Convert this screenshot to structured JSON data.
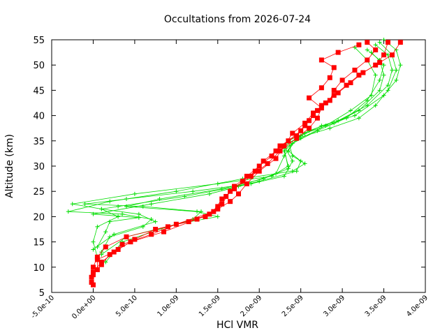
{
  "chart_data": {
    "type": "line",
    "title": "Occultations from 2026-07-24",
    "xlabel": "HCl VMR",
    "ylabel": "Altitude (km)",
    "xlim": [
      -5e-10,
      4e-09
    ],
    "ylim": [
      5,
      55
    ],
    "xticks": [
      -5e-10,
      0,
      5e-10,
      1e-09,
      1.5e-09,
      2e-09,
      2.5e-09,
      3e-09,
      3.5e-09,
      4e-09
    ],
    "xtick_labels": [
      "-5.0e-10",
      "0.0e+00",
      "5.0e-10",
      "1.0e-09",
      "1.5e-09",
      "2.0e-09",
      "2.5e-09",
      "3.0e-09",
      "3.5e-09",
      "4.0e-09"
    ],
    "yticks": [
      5,
      10,
      15,
      20,
      25,
      30,
      35,
      40,
      45,
      50,
      55
    ],
    "ytick_labels": [
      "5",
      "10",
      "15",
      "20",
      "25",
      "30",
      "35",
      "40",
      "45",
      "50",
      "55"
    ],
    "grid": false,
    "legend": "none",
    "colors": {
      "green_series": "#00dd00",
      "red_series": "#ff0000"
    },
    "green_series": [
      {
        "marker": "plus",
        "points": [
          [
            5e-11,
            12
          ],
          [
            0.0,
            15
          ],
          [
            5e-11,
            18
          ],
          [
            3e-10,
            20
          ],
          [
            1e-10,
            21.5
          ],
          [
            -2.5e-10,
            22.5
          ],
          [
            5e-10,
            24.5
          ],
          [
            1.5e-09,
            26.5
          ],
          [
            2.15e-09,
            28
          ],
          [
            2.35e-09,
            30
          ],
          [
            2.3e-09,
            33
          ],
          [
            2.5e-09,
            36
          ],
          [
            2.75e-09,
            38
          ],
          [
            3.15e-09,
            40
          ],
          [
            3.5e-09,
            44
          ],
          [
            3.65e-09,
            47
          ],
          [
            3.7e-09,
            50
          ],
          [
            3.65e-09,
            53
          ],
          [
            3.5e-09,
            55
          ]
        ]
      },
      {
        "marker": "plus",
        "points": [
          [
            1e-10,
            13
          ],
          [
            2e-10,
            16
          ],
          [
            6e-10,
            18
          ],
          [
            7e-10,
            19.5
          ],
          [
            3.5e-10,
            20.5
          ],
          [
            -3e-10,
            21
          ],
          [
            2e-10,
            23
          ],
          [
            1e-09,
            25
          ],
          [
            1.8e-09,
            27.5
          ],
          [
            2.4e-09,
            29
          ],
          [
            2.55e-09,
            30.5
          ],
          [
            2.4e-09,
            32
          ],
          [
            2.35e-09,
            35
          ],
          [
            2.6e-09,
            37
          ],
          [
            2.95e-09,
            39
          ],
          [
            3.3e-09,
            42
          ],
          [
            3.55e-09,
            46
          ],
          [
            3.6e-09,
            49
          ],
          [
            3.55e-09,
            52
          ],
          [
            3.4e-09,
            54
          ]
        ]
      },
      {
        "marker": "plus",
        "points": [
          [
            1.5e-10,
            11
          ],
          [
            3.5e-10,
            15
          ],
          [
            9e-10,
            18
          ],
          [
            1.2e-09,
            19.5
          ],
          [
            1.3e-09,
            21
          ],
          [
            6e-10,
            22
          ],
          [
            -1e-10,
            22.5
          ],
          [
            4e-10,
            23.5
          ],
          [
            1.2e-09,
            25
          ],
          [
            1.9e-09,
            26.5
          ],
          [
            2.3e-09,
            28
          ],
          [
            2.4e-09,
            31
          ],
          [
            2.3e-09,
            34
          ],
          [
            2.55e-09,
            36.5
          ],
          [
            2.9e-09,
            38.5
          ],
          [
            3.2e-09,
            41
          ],
          [
            3.45e-09,
            45
          ],
          [
            3.5e-09,
            48
          ],
          [
            3.45e-09,
            51
          ],
          [
            3.3e-09,
            53
          ]
        ]
      },
      {
        "marker": "plus",
        "points": [
          [
            0.0,
            13.5
          ],
          [
            2.5e-10,
            16.5
          ],
          [
            7.5e-10,
            19
          ],
          [
            5.5e-10,
            20.5
          ],
          [
            1e-10,
            21.5
          ],
          [
            3e-10,
            22
          ],
          [
            1.1e-09,
            24
          ],
          [
            1.75e-09,
            26
          ],
          [
            2.2e-09,
            28.5
          ],
          [
            2.3e-09,
            32
          ],
          [
            2.4e-09,
            34.5
          ],
          [
            2.7e-09,
            37
          ],
          [
            3.05e-09,
            39.5
          ],
          [
            3.3e-09,
            43
          ],
          [
            3.45e-09,
            47
          ],
          [
            3.5e-09,
            50
          ],
          [
            3.35e-09,
            52.5
          ]
        ]
      },
      {
        "marker": "plus",
        "points": [
          [
            1e-10,
            12.5
          ],
          [
            4e-10,
            16
          ],
          [
            1e-09,
            18.5
          ],
          [
            1.5e-09,
            20
          ],
          [
            1.25e-09,
            21
          ],
          [
            4e-10,
            22
          ],
          [
            8e-10,
            23.5
          ],
          [
            1.55e-09,
            25.5
          ],
          [
            2.05e-09,
            27.5
          ],
          [
            2.35e-09,
            29.5
          ],
          [
            2.3e-09,
            33.5
          ],
          [
            2.5e-09,
            35.5
          ],
          [
            2.8e-09,
            38
          ],
          [
            3.1e-09,
            41
          ],
          [
            3.35e-09,
            44
          ],
          [
            3.4e-09,
            48
          ],
          [
            3.3e-09,
            51
          ],
          [
            3.15e-09,
            53.5
          ]
        ]
      },
      {
        "marker": "plus",
        "points": [
          [
            5e-11,
            14
          ],
          [
            1.5e-10,
            17
          ],
          [
            2e-10,
            19
          ],
          [
            5.5e-10,
            19.8
          ],
          [
            0.0,
            20.5
          ],
          [
            7e-10,
            22.5
          ],
          [
            1.4e-09,
            24.5
          ],
          [
            2e-09,
            27
          ],
          [
            2.45e-09,
            29
          ],
          [
            2.5e-09,
            31
          ],
          [
            2.35e-09,
            33
          ],
          [
            2.45e-09,
            35.5
          ],
          [
            2.85e-09,
            37.5
          ],
          [
            3.2e-09,
            39.5
          ],
          [
            3.4e-09,
            42
          ],
          [
            3.55e-09,
            45
          ],
          [
            3.65e-09,
            49
          ],
          [
            3.6e-09,
            52
          ],
          [
            3.45e-09,
            54.5
          ]
        ]
      }
    ],
    "red_series": [
      {
        "marker": "square",
        "points": [
          [
            0.0,
            6.5
          ],
          [
            -2e-11,
            8
          ],
          [
            0.0,
            10
          ],
          [
            5e-11,
            12
          ],
          [
            1.5e-10,
            14
          ],
          [
            4e-10,
            16
          ],
          [
            9e-10,
            18
          ],
          [
            1.35e-09,
            20
          ],
          [
            1.5e-09,
            22
          ],
          [
            1.6e-09,
            24
          ],
          [
            1.7e-09,
            26
          ],
          [
            1.85e-09,
            28
          ],
          [
            2e-09,
            30
          ],
          [
            2.15e-09,
            32
          ],
          [
            2.25e-09,
            34
          ],
          [
            2.45e-09,
            36
          ],
          [
            2.55e-09,
            38
          ],
          [
            2.65e-09,
            40
          ],
          [
            2.75e-09,
            42
          ],
          [
            2.9e-09,
            44
          ],
          [
            3.05e-09,
            46
          ],
          [
            3.2e-09,
            48
          ],
          [
            3.4e-09,
            50
          ],
          [
            3.5e-09,
            52
          ],
          [
            3.55e-09,
            54.5
          ]
        ]
      },
      {
        "marker": "square",
        "points": [
          [
            -2e-11,
            7
          ],
          [
            0.0,
            9
          ],
          [
            1e-10,
            11
          ],
          [
            3e-10,
            13.5
          ],
          [
            5e-10,
            15.5
          ],
          [
            7.5e-10,
            17.5
          ],
          [
            1.15e-09,
            19
          ],
          [
            1.4e-09,
            20.5
          ],
          [
            1.55e-09,
            22.5
          ],
          [
            1.65e-09,
            25
          ],
          [
            1.8e-09,
            27
          ],
          [
            1.95e-09,
            29
          ],
          [
            2.05e-09,
            31
          ],
          [
            2.2e-09,
            33
          ],
          [
            2.35e-09,
            35
          ],
          [
            2.5e-09,
            37
          ],
          [
            2.6e-09,
            39
          ],
          [
            2.7e-09,
            41
          ],
          [
            2.85e-09,
            43
          ],
          [
            2.9e-09,
            45
          ],
          [
            3e-09,
            47
          ],
          [
            3.15e-09,
            49
          ],
          [
            3.3e-09,
            51
          ],
          [
            3.4e-09,
            53
          ],
          [
            3.3e-09,
            54.5
          ]
        ]
      },
      {
        "marker": "square",
        "points": [
          [
            0.0,
            8.5
          ],
          [
            1e-10,
            10.5
          ],
          [
            2e-10,
            12.5
          ],
          [
            3.5e-10,
            14.5
          ],
          [
            7e-10,
            16.5
          ],
          [
            1e-09,
            18.5
          ],
          [
            1.45e-09,
            21
          ],
          [
            1.55e-09,
            23.5
          ],
          [
            1.7e-09,
            25.5
          ],
          [
            1.9e-09,
            28
          ],
          [
            2.1e-09,
            30.5
          ],
          [
            2.25e-09,
            33
          ],
          [
            2.45e-09,
            35.5
          ],
          [
            2.6e-09,
            37.5
          ],
          [
            2.7e-09,
            39.5
          ],
          [
            2.75e-09,
            41.5
          ],
          [
            2.6e-09,
            43.5
          ],
          [
            2.75e-09,
            45.5
          ],
          [
            2.85e-09,
            47.5
          ],
          [
            2.9e-09,
            49.5
          ],
          [
            2.75e-09,
            51
          ],
          [
            2.95e-09,
            52.5
          ],
          [
            3.2e-09,
            54
          ]
        ]
      },
      {
        "marker": "square",
        "points": [
          [
            5e-11,
            9.5
          ],
          [
            5e-11,
            11.5
          ],
          [
            2.5e-10,
            13
          ],
          [
            4.5e-10,
            15
          ],
          [
            8.5e-10,
            17
          ],
          [
            1.25e-09,
            19.5
          ],
          [
            1.5e-09,
            21.5
          ],
          [
            1.65e-09,
            23
          ],
          [
            1.75e-09,
            24.5
          ],
          [
            1.85e-09,
            26.5
          ],
          [
            2e-09,
            29
          ],
          [
            2.2e-09,
            31.5
          ],
          [
            2.3e-09,
            34
          ],
          [
            2.4e-09,
            36.5
          ],
          [
            2.55e-09,
            38.5
          ],
          [
            2.65e-09,
            40.5
          ],
          [
            2.8e-09,
            42.5
          ],
          [
            2.95e-09,
            44.5
          ],
          [
            3.1e-09,
            46.5
          ],
          [
            3.25e-09,
            48.5
          ],
          [
            3.45e-09,
            50.5
          ],
          [
            3.6e-09,
            52
          ],
          [
            3.7e-09,
            54.5
          ]
        ]
      }
    ]
  }
}
